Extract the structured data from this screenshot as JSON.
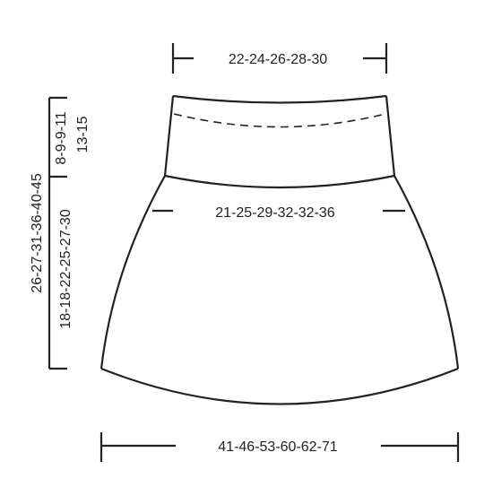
{
  "measurements": {
    "top_width": "22-24-26-28-30",
    "mid_width": "21-25-29-32-32-36",
    "bottom_width": "41-46-53-60-62-71",
    "total_length": "26-27-31-36-40-45",
    "lower_length": "18-18-22-25-27-30",
    "waistband_length_1": "8-9-9-11",
    "waistband_length_2": "13-15"
  },
  "colors": {
    "line": "#222222",
    "background": "#ffffff"
  }
}
